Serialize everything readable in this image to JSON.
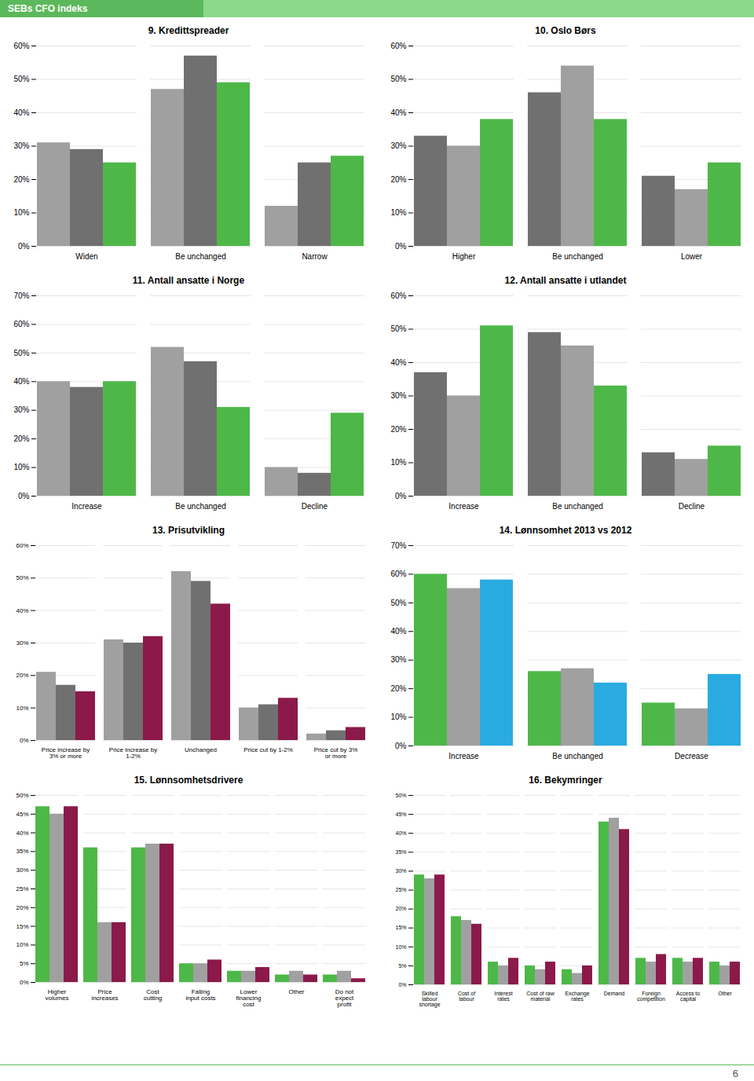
{
  "title": "SEBs CFO indeks",
  "annotations": [
    "6"
  ],
  "chart_data": [
    {
      "type": "bar",
      "title": "9. Kredittspreader",
      "categories": [
        "Widen",
        "Be unchanged",
        "Narrow"
      ],
      "series": [
        {
          "color": "#a0a0a0",
          "values": [
            0.31,
            0.47,
            0.12
          ]
        },
        {
          "color": "#707070",
          "values": [
            0.29,
            0.57,
            0.25
          ]
        },
        {
          "color": "#4db848",
          "values": [
            0.25,
            0.49,
            0.27
          ]
        }
      ],
      "ylim": [
        0,
        0.6
      ],
      "yticks": [
        {
          "value": 0,
          "label": "0%"
        },
        {
          "value": 0.1,
          "label": "10%"
        },
        {
          "value": 0.2,
          "label": "20%"
        },
        {
          "value": 0.3,
          "label": "30%"
        },
        {
          "value": 0.4,
          "label": "40%"
        },
        {
          "value": 0.5,
          "label": "50%"
        },
        {
          "value": 0.6,
          "label": "60%"
        }
      ],
      "grid": true
    },
    {
      "type": "bar",
      "title": "10. Oslo Børs",
      "categories": [
        "Higher",
        "Be unchanged",
        "Lower"
      ],
      "series": [
        {
          "color": "#707070",
          "values": [
            0.33,
            0.46,
            0.21
          ]
        },
        {
          "color": "#a0a0a0",
          "values": [
            0.3,
            0.54,
            0.17
          ]
        },
        {
          "color": "#4db848",
          "values": [
            0.38,
            0.38,
            0.25
          ]
        }
      ],
      "ylim": [
        0,
        0.6
      ],
      "yticks": [
        {
          "value": 0,
          "label": "0%"
        },
        {
          "value": 0.1,
          "label": "10%"
        },
        {
          "value": 0.2,
          "label": "20%"
        },
        {
          "value": 0.3,
          "label": "30%"
        },
        {
          "value": 0.4,
          "label": "40%"
        },
        {
          "value": 0.5,
          "label": "50%"
        },
        {
          "value": 0.6,
          "label": "60%"
        }
      ],
      "grid": true
    },
    {
      "type": "bar",
      "title": "11. Antall ansatte i Norge",
      "categories": [
        "Increase",
        "Be unchanged",
        "Decline"
      ],
      "series": [
        {
          "color": "#a0a0a0",
          "values": [
            0.4,
            0.52,
            0.1
          ]
        },
        {
          "color": "#707070",
          "values": [
            0.38,
            0.47,
            0.08
          ]
        },
        {
          "color": "#4db848",
          "values": [
            0.4,
            0.31,
            0.29
          ]
        }
      ],
      "ylim": [
        0,
        0.7
      ],
      "yticks": [
        {
          "value": 0,
          "label": "0%"
        },
        {
          "value": 0.1,
          "label": "10%"
        },
        {
          "value": 0.2,
          "label": "20%"
        },
        {
          "value": 0.3,
          "label": "30%"
        },
        {
          "value": 0.4,
          "label": "40%"
        },
        {
          "value": 0.5,
          "label": "50%"
        },
        {
          "value": 0.6,
          "label": "60%"
        },
        {
          "value": 0.7,
          "label": "70%"
        }
      ],
      "grid": true
    },
    {
      "type": "bar",
      "title": "12. Antall ansatte i utlandet",
      "categories": [
        "Increase",
        "Be unchanged",
        "Decline"
      ],
      "series": [
        {
          "color": "#707070",
          "values": [
            0.37,
            0.49,
            0.13
          ]
        },
        {
          "color": "#a0a0a0",
          "values": [
            0.3,
            0.45,
            0.11
          ]
        },
        {
          "color": "#4db848",
          "values": [
            0.51,
            0.33,
            0.15
          ]
        }
      ],
      "ylim": [
        0,
        0.6
      ],
      "yticks": [
        {
          "value": 0,
          "label": "0%"
        },
        {
          "value": 0.1,
          "label": "10%"
        },
        {
          "value": 0.2,
          "label": "20%"
        },
        {
          "value": 0.3,
          "label": "30%"
        },
        {
          "value": 0.4,
          "label": "40%"
        },
        {
          "value": 0.5,
          "label": "50%"
        },
        {
          "value": 0.6,
          "label": "60%"
        }
      ],
      "grid": true
    },
    {
      "type": "bar",
      "title": "13. Prisutvikling",
      "categories": [
        "Price increase by\n3% or more",
        "Price increase by\n1-2%",
        "Unchanged",
        "Price cut by 1-2%",
        "Price cut by 3%\nor more"
      ],
      "series": [
        {
          "color": "#a0a0a0",
          "values": [
            0.21,
            0.31,
            0.52,
            0.1,
            0.02
          ]
        },
        {
          "color": "#707070",
          "values": [
            0.17,
            0.3,
            0.49,
            0.11,
            0.03
          ]
        },
        {
          "color": "#8b1a4a",
          "values": [
            0.15,
            0.32,
            0.42,
            0.13,
            0.04
          ]
        }
      ],
      "ylim": [
        0,
        0.6
      ],
      "yticks": [
        {
          "value": 0,
          "label": "0%"
        },
        {
          "value": 0.1,
          "label": "10%"
        },
        {
          "value": 0.2,
          "label": "20%"
        },
        {
          "value": 0.3,
          "label": "30%"
        },
        {
          "value": 0.4,
          "label": "40%"
        },
        {
          "value": 0.5,
          "label": "50%"
        },
        {
          "value": 0.6,
          "label": "60%"
        }
      ],
      "grid": true
    },
    {
      "type": "bar",
      "title": "14. Lønnsomhet 2013 vs 2012",
      "categories": [
        "Increase",
        "Be unchanged",
        "Decrease"
      ],
      "series": [
        {
          "color": "#4db848",
          "values": [
            0.6,
            0.26,
            0.15
          ]
        },
        {
          "color": "#a0a0a0",
          "values": [
            0.55,
            0.27,
            0.13
          ]
        },
        {
          "color": "#29abe2",
          "values": [
            0.58,
            0.22,
            0.25
          ]
        }
      ],
      "ylim": [
        0,
        0.7
      ],
      "yticks": [
        {
          "value": 0,
          "label": "0%"
        },
        {
          "value": 0.1,
          "label": "10%"
        },
        {
          "value": 0.2,
          "label": "20%"
        },
        {
          "value": 0.3,
          "label": "30%"
        },
        {
          "value": 0.4,
          "label": "40%"
        },
        {
          "value": 0.5,
          "label": "50%"
        },
        {
          "value": 0.6,
          "label": "60%"
        },
        {
          "value": 0.7,
          "label": "70%"
        }
      ],
      "grid": true
    },
    {
      "type": "bar",
      "title": "15. Lønnsomhetsdrivere",
      "categories": [
        "Higher\nvolumes",
        "Price\nincreases",
        "Cost\ncutting",
        "Falling\ninput costs",
        "Lower\nfinancing\ncost",
        "Other",
        "Do not\nexpect\nprofit"
      ],
      "series": [
        {
          "color": "#4db848",
          "values": [
            0.47,
            0.36,
            0.36,
            0.05,
            0.03,
            0.02,
            0.02
          ]
        },
        {
          "color": "#a0a0a0",
          "values": [
            0.45,
            0.16,
            0.37,
            0.05,
            0.03,
            0.03,
            0.03
          ]
        },
        {
          "color": "#8b1a4a",
          "values": [
            0.47,
            0.16,
            0.37,
            0.06,
            0.04,
            0.02,
            0.01
          ]
        }
      ],
      "ylim": [
        0,
        0.5
      ],
      "yticks": [
        {
          "value": 0,
          "label": "0%"
        },
        {
          "value": 0.05,
          "label": "5%"
        },
        {
          "value": 0.1,
          "label": "10%"
        },
        {
          "value": 0.15,
          "label": "15%"
        },
        {
          "value": 0.2,
          "label": "20%"
        },
        {
          "value": 0.25,
          "label": "25%"
        },
        {
          "value": 0.3,
          "label": "30%"
        },
        {
          "value": 0.35,
          "label": "35%"
        },
        {
          "value": 0.4,
          "label": "40%"
        },
        {
          "value": 0.45,
          "label": "45%"
        },
        {
          "value": 0.5,
          "label": "50%"
        }
      ],
      "grid": true
    },
    {
      "type": "bar",
      "title": "16. Bekymringer",
      "categories": [
        "Skilled\nlabour\nshortage",
        "Cost of\nlabour",
        "Interest\nrates",
        "Cost of raw\nmaterial",
        "Exchange\nrates",
        "Demand",
        "Foreign\ncompetition",
        "Access to\ncapital",
        "Other"
      ],
      "series": [
        {
          "color": "#4db848",
          "values": [
            0.29,
            0.18,
            0.06,
            0.05,
            0.04,
            0.43,
            0.07,
            0.07,
            0.06
          ]
        },
        {
          "color": "#a0a0a0",
          "values": [
            0.28,
            0.17,
            0.05,
            0.04,
            0.03,
            0.44,
            0.06,
            0.06,
            0.05
          ]
        },
        {
          "color": "#8b1a4a",
          "values": [
            0.29,
            0.16,
            0.07,
            0.06,
            0.05,
            0.41,
            0.08,
            0.07,
            0.06
          ]
        }
      ],
      "ylim": [
        0,
        0.5
      ],
      "yticks": [
        {
          "value": 0,
          "label": "0%"
        },
        {
          "value": 0.05,
          "label": "5%"
        },
        {
          "value": 0.1,
          "label": "10%"
        },
        {
          "value": 0.15,
          "label": "15%"
        },
        {
          "value": 0.2,
          "label": "20%"
        },
        {
          "value": 0.25,
          "label": "25%"
        },
        {
          "value": 0.3,
          "label": "30%"
        },
        {
          "value": 0.35,
          "label": "35%"
        },
        {
          "value": 0.4,
          "label": "40%"
        },
        {
          "value": 0.45,
          "label": "45%"
        },
        {
          "value": 0.5,
          "label": "50%"
        }
      ],
      "grid": true
    }
  ]
}
